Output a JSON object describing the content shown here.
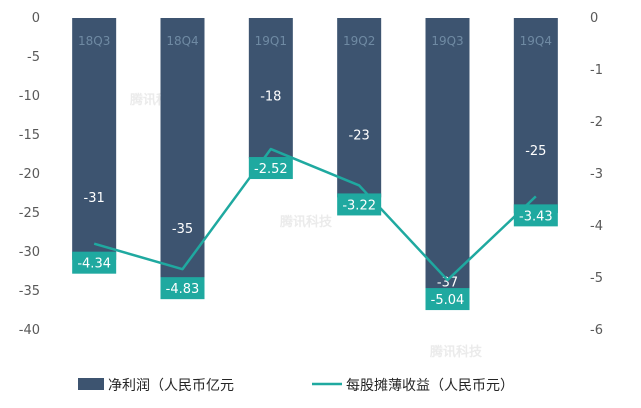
{
  "watermark": "腾讯科技",
  "colors": {
    "bar": "#3d5470",
    "line": "#1fa9a0",
    "label_box": "#1fa9a0",
    "axis_text": "#595959"
  },
  "chart_data": {
    "type": "bar",
    "categories": [
      "18Q3",
      "18Q4",
      "19Q1",
      "19Q2",
      "19Q3",
      "19Q4"
    ],
    "series": [
      {
        "name": "净利润（人民币亿元",
        "kind": "bar",
        "axis": "left",
        "values": [
          -31,
          -35,
          -18,
          -23,
          -37,
          -25
        ],
        "labels": [
          "-31",
          "-35",
          "-18",
          "-23",
          "-37",
          "-25"
        ]
      },
      {
        "name": "每股摊薄收益（人民币元）",
        "kind": "line",
        "axis": "right",
        "values": [
          -4.34,
          -4.83,
          -2.52,
          -3.22,
          -5.04,
          -3.43
        ],
        "labels": [
          "-4.34",
          "-4.83",
          "-2.52",
          "-3.22",
          "-5.04",
          "-3.43"
        ]
      }
    ],
    "y_left": {
      "min": -40,
      "max": 0,
      "ticks": [
        "0",
        "-5",
        "-10",
        "-15",
        "-20",
        "-25",
        "-30",
        "-35",
        "-40"
      ]
    },
    "y_right": {
      "min": -6,
      "max": 0,
      "ticks": [
        "0",
        "-1",
        "-2",
        "-3",
        "-4",
        "-5",
        "-6"
      ]
    },
    "grid": false,
    "legend_position": "bottom"
  }
}
